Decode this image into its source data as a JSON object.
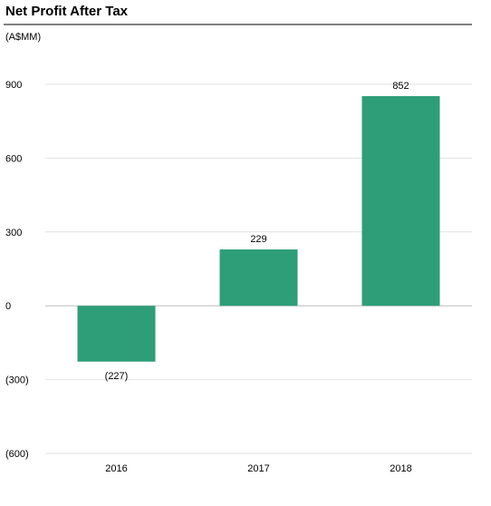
{
  "chart_data": {
    "type": "bar",
    "title": "Net Profit After Tax",
    "unit_label": "(A$MM)",
    "categories": [
      "2016",
      "2017",
      "2018"
    ],
    "values": [
      -227,
      229,
      852
    ],
    "data_labels": [
      "(227)",
      "229",
      "852"
    ],
    "yticks": [
      900,
      600,
      300,
      0,
      -300,
      -600
    ],
    "ytick_labels": [
      "900",
      "600",
      "300",
      "0",
      "(300)",
      "(600)"
    ],
    "ylim": [
      -600,
      900
    ],
    "grid": true,
    "legend": "none",
    "bar_color": "#2e9e78"
  }
}
